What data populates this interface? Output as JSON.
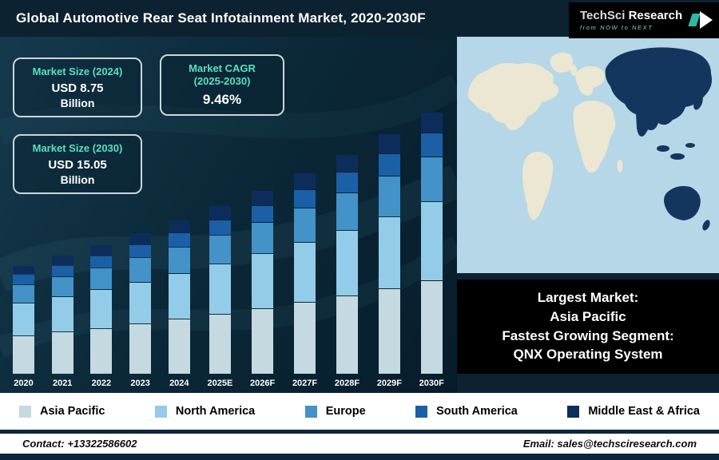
{
  "header": {
    "title": "Global Automotive Rear Seat Infotainment Market, 2020-2030F",
    "logo": {
      "brand1": "TechSci ",
      "brand2": "Research",
      "tagline": "from NOW to NEXT"
    }
  },
  "stats": {
    "box1": {
      "heading": "Market Size (2024)",
      "value": "USD 8.75",
      "unit": "Billion"
    },
    "box2": {
      "heading_line1": "Market CAGR",
      "heading_line2": "(2025-2030)",
      "value": "9.46%"
    },
    "box3": {
      "heading": "Market Size (2030)",
      "value": "USD 15.05",
      "unit": "Billion"
    }
  },
  "highlight": {
    "line1": "Largest Market:",
    "line2": "Asia Pacific",
    "line3": "Fastest Growing Segment:",
    "line4": "QNX Operating System"
  },
  "chart_data": {
    "type": "bar",
    "stacked": true,
    "title": "Global Automotive Rear Seat Infotainment Market, 2020-2030F",
    "unit": "USD Billion",
    "ylim": [
      0,
      16
    ],
    "grid": false,
    "legend_position": "bottom",
    "categories": [
      "2020",
      "2021",
      "2022",
      "2023",
      "2024",
      "2025E",
      "2026F",
      "2027F",
      "2028F",
      "2029F",
      "2030F"
    ],
    "series": [
      {
        "name": "Asia Pacific",
        "color": "#c4d9e0",
        "values": [
          2.2,
          2.4,
          2.63,
          2.88,
          3.15,
          3.45,
          3.77,
          4.13,
          4.52,
          4.95,
          5.42
        ]
      },
      {
        "name": "North America",
        "color": "#93cce8",
        "values": [
          1.83,
          2.0,
          2.19,
          2.4,
          2.63,
          2.87,
          3.14,
          3.44,
          3.77,
          4.13,
          4.52
        ]
      },
      {
        "name": "Europe",
        "color": "#4392c8",
        "values": [
          1.04,
          1.14,
          1.24,
          1.36,
          1.49,
          1.63,
          1.78,
          1.95,
          2.14,
          2.34,
          2.56
        ]
      },
      {
        "name": "South America",
        "color": "#1b5fa6",
        "values": [
          0.55,
          0.6,
          0.66,
          0.72,
          0.79,
          0.86,
          0.94,
          1.03,
          1.13,
          1.24,
          1.35
        ]
      },
      {
        "name": "Middle East & Africa",
        "color": "#0c2d5c",
        "values": [
          0.48,
          0.54,
          0.59,
          0.64,
          0.69,
          0.77,
          0.85,
          0.92,
          1.0,
          1.09,
          1.2
        ]
      }
    ],
    "totals": [
      6.1,
      6.68,
      7.31,
      8.0,
      8.75,
      9.58,
      10.48,
      11.47,
      12.56,
      13.75,
      15.05
    ],
    "annotations": {
      "market_size_2024": "USD 8.75 Billion",
      "market_size_2030": "USD 15.05 Billion",
      "cagr_2025_2030": "9.46%"
    }
  },
  "map": {
    "ocean_color": "#b5d7e8",
    "land_color": "#ebe7d2",
    "highlight_color": "#14365e",
    "highlighted_region": "Asia Pacific"
  },
  "footer": {
    "contact": "Contact: +13322586602",
    "email": "Email: sales@techsciresearch.com"
  }
}
